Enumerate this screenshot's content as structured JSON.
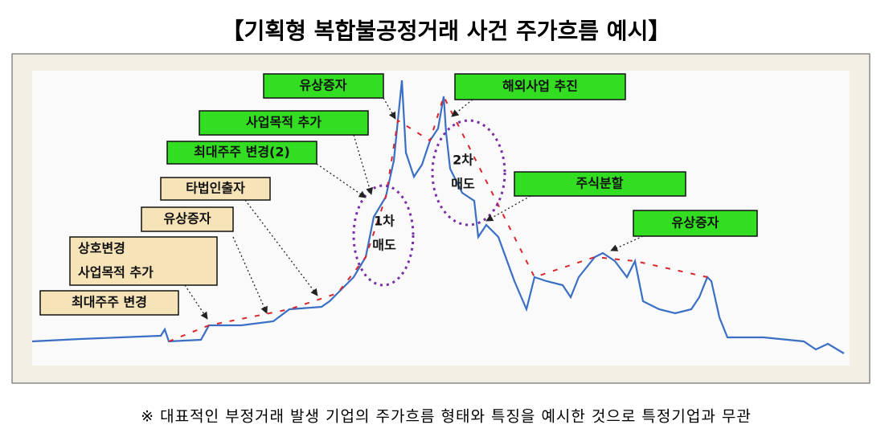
{
  "header": {
    "title": "【기획형 복합불공정거래 사건 주가흐름 예시】"
  },
  "annotations": {
    "green": [
      "유상증자",
      "사업목적 추가",
      "최대주주 변경(2)",
      "해외사업 추진",
      "주식분할",
      "유상증자"
    ],
    "beige": [
      "타법인출자",
      "유상증자",
      "상호변경",
      "사업목적 추가",
      "최대주주 변경"
    ],
    "sell_1": [
      "1차",
      "매도"
    ],
    "sell_2": [
      "2차",
      "매도"
    ]
  },
  "footnote": "※ 대표적인 부정거래 발생 기업의 주가흐름 형태와 특징을 예시한 것으로 특정기업과 무관"
}
